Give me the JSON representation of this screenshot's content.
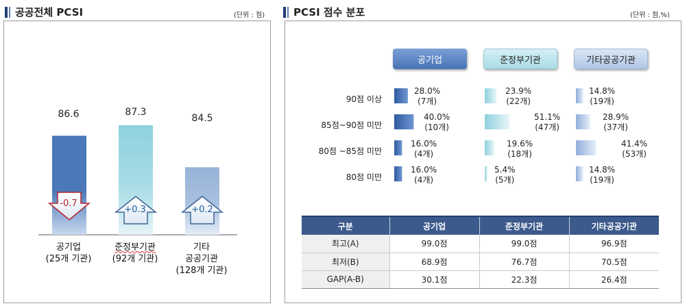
{
  "left": {
    "title": "공공전체 PCSI",
    "unit": "(단위 : 점)",
    "bars": [
      {
        "value": "86.6",
        "change": "-0.7",
        "label1": "공기업",
        "label2": "(25개 기관)",
        "label3": ""
      },
      {
        "value": "87.3",
        "change": "+0.3",
        "label1": "준정부기관",
        "label2": "(92개 기관)",
        "label3": ""
      },
      {
        "value": "84.5",
        "change": "+0.2",
        "label1": "기타",
        "label2": "공공기관",
        "label3": "(128개 기관)"
      }
    ]
  },
  "right": {
    "title": "PCSI 점수 분포",
    "unit": "(단위 : 점,%)",
    "groups": [
      "공기업",
      "준정부기관",
      "기타공공기관"
    ],
    "rows": [
      "90점 이상",
      "85점~90점 미만",
      "80점 ~85점 미만",
      "80점 미만"
    ],
    "cells": [
      [
        {
          "pct": "28.0%",
          "cnt": "(7개)"
        },
        {
          "pct": "23.9%",
          "cnt": "(22개)"
        },
        {
          "pct": "14.8%",
          "cnt": "(19개)"
        }
      ],
      [
        {
          "pct": "40.0%",
          "cnt": "(10개)"
        },
        {
          "pct": "51.1%",
          "cnt": "(47개)"
        },
        {
          "pct": "28.9%",
          "cnt": "(37개)"
        }
      ],
      [
        {
          "pct": "16.0%",
          "cnt": "(4개)"
        },
        {
          "pct": "19.6%",
          "cnt": "(18개)"
        },
        {
          "pct": "41.4%",
          "cnt": "(53개)"
        }
      ],
      [
        {
          "pct": "16.0%",
          "cnt": "(4개)"
        },
        {
          "pct": "5.4%",
          "cnt": "(5개)"
        },
        {
          "pct": "14.8%",
          "cnt": "(19개)"
        }
      ]
    ],
    "table": {
      "headers": [
        "구분",
        "공기업",
        "준정부기관",
        "기타공공기관"
      ],
      "rows": [
        [
          "최고(A)",
          "99.0점",
          "99.0점",
          "96.9점"
        ],
        [
          "최저(B)",
          "68.9점",
          "76.7점",
          "70.5점"
        ],
        [
          "GAP(A-B)",
          "30.1점",
          "22.3점",
          "26.4점"
        ]
      ]
    }
  },
  "chart_data": [
    {
      "type": "bar",
      "title": "공공전체 PCSI",
      "categories": [
        "공기업 (25개 기관)",
        "준정부기관 (92개 기관)",
        "기타 공공기관 (128개 기관)"
      ],
      "values": [
        86.6,
        87.3,
        84.5
      ],
      "changes": [
        -0.7,
        0.3,
        0.2
      ],
      "colors": [
        "#4a78b8",
        "#8fd2df",
        "#9ab6da"
      ]
    },
    {
      "type": "bar",
      "title": "PCSI 점수 분포",
      "categories": [
        "90점 이상",
        "85점~90점 미만",
        "80점 ~85점 미만",
        "80점 미만"
      ],
      "series": [
        {
          "name": "공기업",
          "values": [
            28.0,
            40.0,
            16.0,
            16.0
          ],
          "counts": [
            7,
            10,
            4,
            4
          ]
        },
        {
          "name": "준정부기관",
          "values": [
            23.9,
            51.1,
            19.6,
            5.4
          ],
          "counts": [
            22,
            47,
            18,
            5
          ]
        },
        {
          "name": "기타공공기관",
          "values": [
            14.8,
            28.9,
            41.4,
            14.8
          ],
          "counts": [
            19,
            37,
            53,
            19
          ]
        }
      ]
    }
  ],
  "colors": {
    "navy": "#1f3d73",
    "header": "#3c5a8c",
    "down": "#b3242a",
    "up": "#1c5fa3"
  }
}
